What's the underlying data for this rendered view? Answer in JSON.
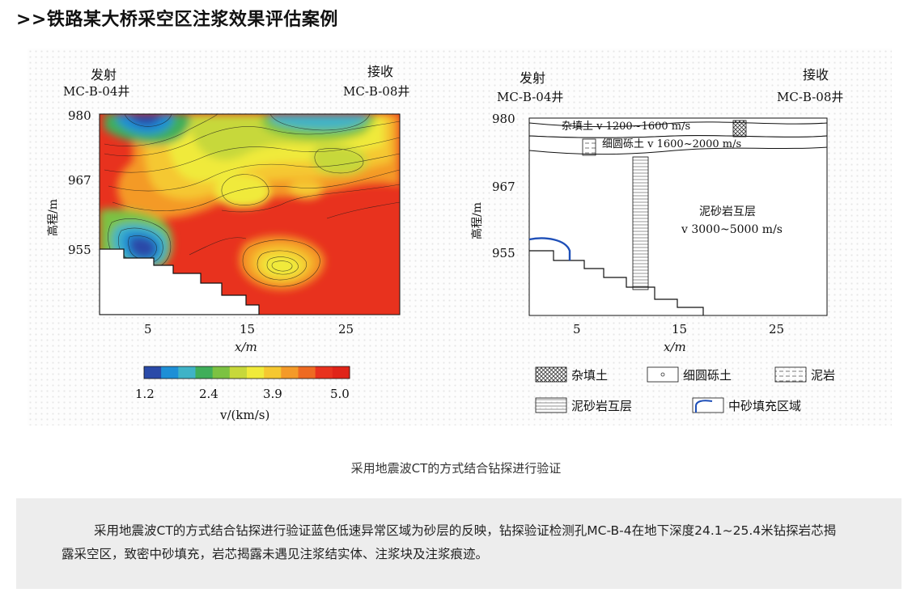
{
  "header": {
    "title": ">>铁路某大桥采空区注浆效果评估案例"
  },
  "left_panel": {
    "source_label": "发射",
    "source_well": "MC-B-04井",
    "receiver_label": "接收",
    "receiver_well": "MC-B-08井",
    "y_ticks": [
      "980",
      "967",
      "955"
    ],
    "x_ticks": [
      "5",
      "15",
      "25"
    ],
    "y_label": "高程/m",
    "x_label": "x/m",
    "colorbar_ticks": [
      "1.2",
      "2.4",
      "3.9",
      "5.0"
    ],
    "colorbar_label": "v/(km/s)",
    "colorbar_colors": [
      "#2a4aa8",
      "#1e8fd6",
      "#3fb3c7",
      "#3fae5a",
      "#7cc242",
      "#c7d83a",
      "#f0ea3a",
      "#f5c830",
      "#f49a28",
      "#ee6a22",
      "#e8321e",
      "#e02418"
    ]
  },
  "right_panel": {
    "source_label": "发射",
    "source_well": "MC-B-04井",
    "receiver_label": "接收",
    "receiver_well": "MC-B-08井",
    "y_ticks": [
      "980",
      "967",
      "955"
    ],
    "x_ticks": [
      "5",
      "15",
      "25"
    ],
    "y_label": "高程/m",
    "x_label": "x/m",
    "layer1": "杂填土  v 1200~1600 m/s",
    "layer2": "细圆砾土  v 1600~2000 m/s",
    "layer3_name": "泥砂岩互层",
    "layer3_velocity": "v 3000~5000 m/s",
    "legend": [
      "杂填土",
      "细圆砾土",
      "泥岩",
      "泥砂岩互层",
      "中砂填充区域"
    ]
  },
  "caption": "采用地震波CT的方式结合钻探进行验证",
  "note": "采用地震波CT的方式结合钻探进行验证蓝色低速异常区域为砂层的反映，钻探验证检测孔MC-B-4在地下深度24.1~25.4米钻探岩芯揭露采空区，致密中砂填充，岩芯揭露未遇见注浆结实体、注浆块及注浆痕迹。"
}
